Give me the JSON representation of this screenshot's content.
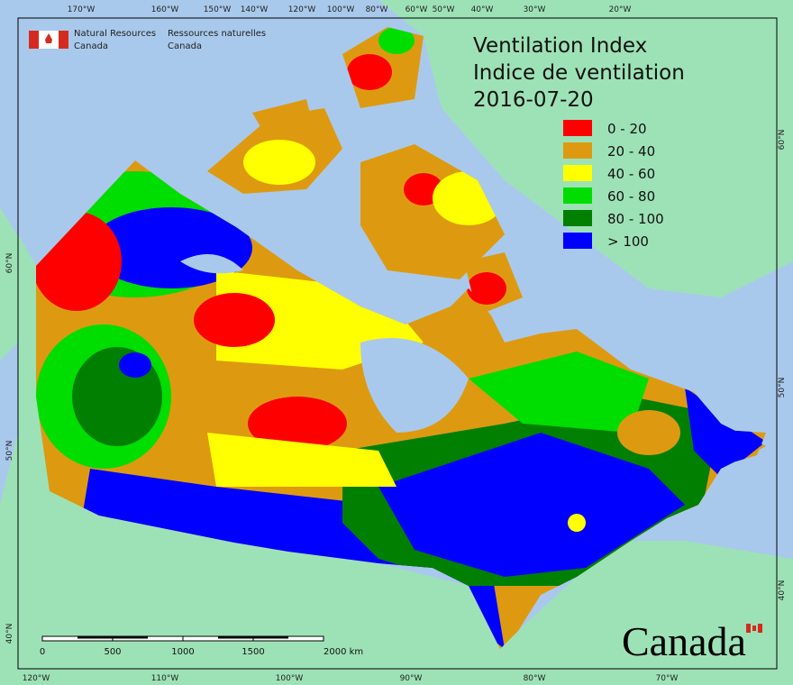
{
  "header": {
    "agency_en": [
      "Natural Resources",
      "Canada"
    ],
    "agency_fr": [
      "Ressources naturelles",
      "Canada"
    ]
  },
  "title": [
    "Ventilation Index",
    "Indice de ventilation",
    "2016-07-20"
  ],
  "legend": [
    {
      "label": "0 - 20",
      "color": "#ff0000"
    },
    {
      "label": "20 - 40",
      "color": "#dd9a10"
    },
    {
      "label": "40 - 60",
      "color": "#ffff00"
    },
    {
      "label": "60 - 80",
      "color": "#00dd00"
    },
    {
      "label": "80 - 100",
      "color": "#007f00"
    },
    {
      "label": "> 100",
      "color": "#0000ff"
    }
  ],
  "scale_bar": {
    "labels": [
      "0",
      "500",
      "1000",
      "1500",
      "2000 km"
    ]
  },
  "graticule": {
    "top": [
      "170°W",
      "160°W",
      "150°W",
      "140°W",
      "120°W",
      "100°W",
      "80°W",
      "60°W",
      "50°W",
      "40°W",
      "30°W",
      "20°W"
    ],
    "bottom": [
      "120°W",
      "110°W",
      "100°W",
      "90°W",
      "80°W",
      "70°W"
    ],
    "left": [
      "60°N",
      "50°N",
      "40°N"
    ],
    "right": [
      "60°N",
      "50°N",
      "40°N"
    ]
  },
  "wordmark": "Canada"
}
